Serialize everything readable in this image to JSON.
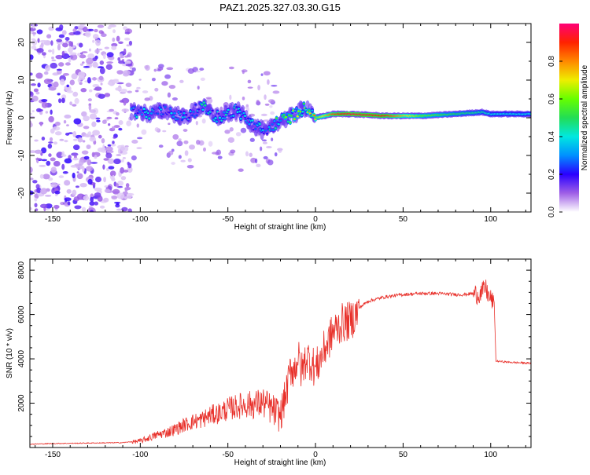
{
  "figure": {
    "title": "PAZ1.2025.327.03.30.G15"
  },
  "chart_data": [
    {
      "type": "heatmap",
      "title": "PAZ1.2025.327.03.30.G15",
      "xlabel": "Height of straight line (km)",
      "ylabel": "Frequency (Hz)",
      "xlim": [
        -163,
        123
      ],
      "ylim": [
        -25,
        25
      ],
      "xticks": [
        -150,
        -100,
        -50,
        0,
        50,
        100
      ],
      "yticks": [
        -20,
        -10,
        0,
        10,
        20
      ],
      "colorbar": {
        "label": "Normalized spectral amplitude",
        "range": [
          0,
          1
        ],
        "ticks": [
          0.0,
          0.2,
          0.4,
          0.6,
          0.8
        ],
        "tick_labels": [
          "0.0",
          "0.2",
          "0.4",
          "0.6",
          "0.8"
        ]
      },
      "ridge": {
        "note": "frequency of dominant spectral peak vs height",
        "x": [
          -105,
          -95,
          -85,
          -75,
          -65,
          -55,
          -45,
          -35,
          -28,
          -22,
          -15,
          -8,
          -4,
          0,
          10,
          20,
          40,
          60,
          80,
          95,
          100,
          123
        ],
        "y": [
          2,
          1,
          2,
          0,
          3,
          0,
          2,
          -2,
          -4,
          -1,
          0,
          2,
          3,
          0,
          1,
          1,
          0.5,
          0.5,
          1,
          1.5,
          1,
          1
        ],
        "amplitude": [
          0.3,
          0.35,
          0.3,
          0.3,
          0.35,
          0.3,
          0.35,
          0.3,
          0.35,
          0.4,
          0.5,
          0.5,
          0.55,
          0.6,
          0.85,
          0.95,
          0.9,
          0.6,
          0.5,
          0.45,
          0.4,
          0.4
        ]
      }
    },
    {
      "type": "line",
      "xlabel": "Height of straight line (km)",
      "ylabel": "SNR (10 * v/v)",
      "xlim": [
        -163,
        123
      ],
      "ylim": [
        0,
        8500
      ],
      "xticks": [
        -150,
        -100,
        -50,
        0,
        50,
        100
      ],
      "yticks": [
        2000,
        4000,
        6000,
        8000
      ],
      "series": [
        {
          "name": "SNR",
          "color": "#e8302a",
          "x": [
            -163,
            -150,
            -130,
            -110,
            -100,
            -95,
            -90,
            -85,
            -80,
            -75,
            -70,
            -65,
            -60,
            -55,
            -50,
            -45,
            -40,
            -35,
            -30,
            -25,
            -20,
            -16,
            -14,
            -12,
            -10,
            -8,
            -5,
            -2,
            0,
            5,
            10,
            15,
            20,
            25,
            30,
            40,
            50,
            60,
            70,
            80,
            85,
            90,
            93,
            95,
            97,
            99,
            101,
            102,
            103,
            110,
            123
          ],
          "y": [
            150,
            180,
            200,
            220,
            300,
            450,
            600,
            700,
            850,
            1050,
            1200,
            1300,
            1500,
            1600,
            1800,
            1900,
            2000,
            2000,
            2100,
            1800,
            1500,
            2800,
            3700,
            3600,
            4200,
            3500,
            4200,
            3900,
            3600,
            4500,
            5300,
            5700,
            5800,
            6300,
            6600,
            6800,
            6900,
            6950,
            6950,
            6900,
            6900,
            6950,
            6900,
            7000,
            7200,
            6800,
            6600,
            6500,
            3900,
            3850,
            3800
          ]
        }
      ]
    }
  ]
}
